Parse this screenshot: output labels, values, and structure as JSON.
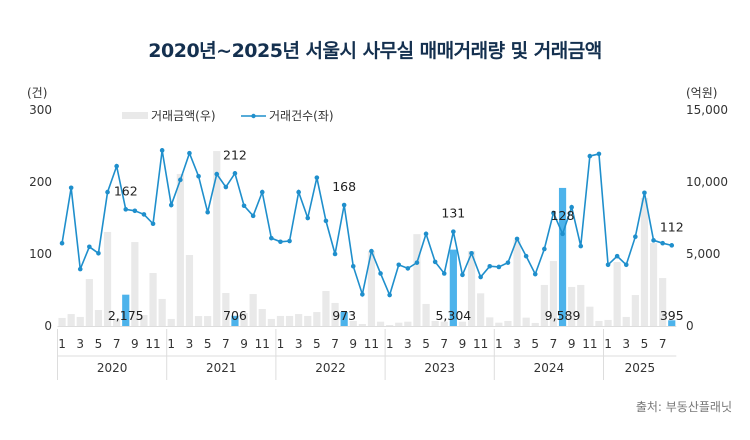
{
  "title": "2020년~2025년 서울시 사무실 매매거래량 및 거래금액",
  "source": "출처: 부동산플래닛",
  "chart_data": {
    "type": "bar+line",
    "title": "2020년~2025년 서울시 사무실 매매거래량 및 거래금액",
    "left_axis": {
      "unit_label": "(건)",
      "range": [
        0,
        300
      ],
      "ticks": [
        0,
        100,
        200,
        300
      ]
    },
    "right_axis": {
      "unit_label": "(억원)",
      "range": [
        0,
        15000
      ],
      "ticks": [
        "0",
        "5,000",
        "10,000",
        "15,000"
      ],
      "tick_values": [
        0,
        5000,
        10000,
        15000
      ]
    },
    "legend": {
      "position": "top-left",
      "items": [
        "거래금액(우)",
        "거래건수(좌)"
      ]
    },
    "years": [
      "2020",
      "2021",
      "2022",
      "2023",
      "2024",
      "2025"
    ],
    "month_ticks": [
      "1",
      "3",
      "5",
      "7",
      "9",
      "11"
    ],
    "highlight_month": 8,
    "series": [
      {
        "name": "거래금액(우)",
        "type": "bar",
        "axis": "right",
        "values": [
          560,
          830,
          630,
          3260,
          1110,
          6530,
          500,
          2175,
          5830,
          760,
          3680,
          1880,
          490,
          10560,
          4930,
          690,
          690,
          12150,
          2290,
          706,
          900,
          2220,
          1180,
          490,
          700,
          700,
          830,
          700,
          970,
          2430,
          1600,
          973,
          350,
          140,
          5200,
          300,
          70,
          230,
          300,
          6380,
          1530,
          350,
          300,
          5304,
          300,
          5200,
          2270,
          600,
          230,
          350,
          5970,
          580,
          210,
          2850,
          4510,
          9589,
          2710,
          2850,
          1340,
          350,
          420,
          4440,
          630,
          2150,
          8890,
          5760,
          3330,
          395
        ]
      },
      {
        "name": "거래건수(좌)",
        "type": "line",
        "axis": "left",
        "values": [
          115,
          192,
          79,
          110,
          101,
          186,
          222,
          162,
          160,
          155,
          142,
          244,
          168,
          203,
          240,
          208,
          158,
          211,
          193,
          212,
          167,
          153,
          186,
          122,
          117,
          118,
          186,
          150,
          206,
          146,
          100,
          168,
          83,
          44,
          104,
          73,
          43,
          85,
          80,
          88,
          128,
          89,
          73,
          131,
          71,
          101,
          68,
          83,
          82,
          88,
          121,
          97,
          72,
          107,
          157,
          128,
          165,
          111,
          236,
          239,
          85,
          97,
          85,
          124,
          185,
          119,
          115,
          112
        ]
      }
    ],
    "bar_labels": [
      "2,175",
      "706",
      "973",
      "5,304",
      "9,589",
      "395"
    ],
    "line_labels": [
      "162",
      "212",
      "168",
      "131",
      "128",
      "112"
    ],
    "colors": {
      "bar": "#e9e9e9",
      "bar_highlight": "#4db3eb",
      "line": "#1f8fcc",
      "title": "#14304f"
    }
  }
}
